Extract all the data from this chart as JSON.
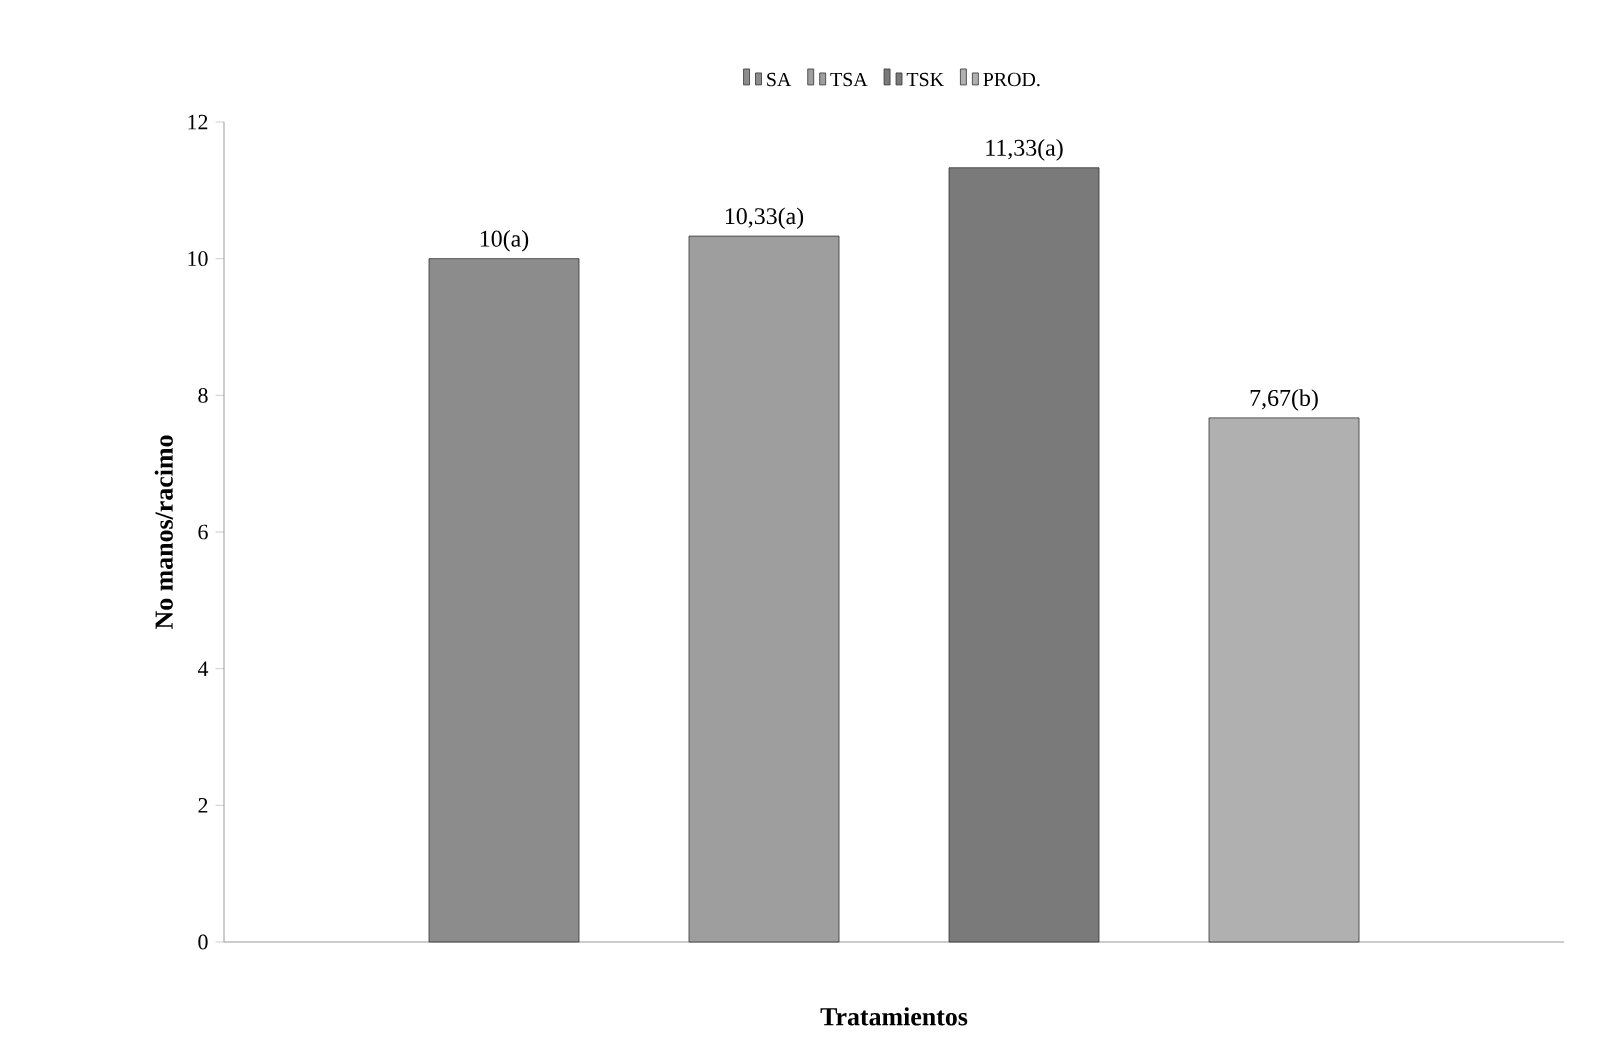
{
  "chart_data": {
    "type": "bar",
    "xlabel": "Tratamientos",
    "ylabel": "No manos/racimo",
    "categories": [
      null
    ],
    "series": [
      {
        "name": "SA",
        "color": "#8c8c8c",
        "values": [
          10
        ],
        "value_labels": [
          "10(a)"
        ]
      },
      {
        "name": "TSA",
        "color": "#9e9e9e",
        "values": [
          10.33
        ],
        "value_labels": [
          "10,33(a)"
        ]
      },
      {
        "name": "TSK",
        "color": "#7a7a7a",
        "values": [
          11.33
        ],
        "value_labels": [
          "11,33(a)"
        ]
      },
      {
        "name": "PROD.",
        "color": "#b0b0b0",
        "values": [
          7.67
        ],
        "value_labels": [
          "7,67(b)"
        ]
      }
    ],
    "ylim": [
      0,
      12
    ],
    "yticks": [
      0,
      2,
      4,
      6,
      8,
      10,
      12
    ],
    "tick_labels": "y",
    "legend": "top"
  }
}
